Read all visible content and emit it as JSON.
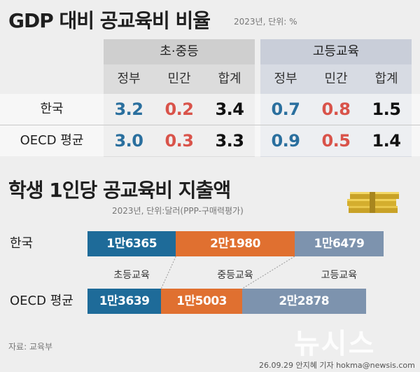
{
  "table_section": {
    "title": "GDP 대비 공교육비 비율",
    "note": "2023년, 단위: %",
    "groups": [
      "초·중등",
      "고등교육"
    ],
    "columns": [
      "정부",
      "민간",
      "합계",
      "정부",
      "민간",
      "합계"
    ],
    "rows": [
      {
        "label": "한국",
        "values": [
          "3.2",
          "0.2",
          "3.4",
          "0.7",
          "0.8",
          "1.5"
        ]
      },
      {
        "label": "OECD 평균",
        "values": [
          "3.0",
          "0.3",
          "3.3",
          "0.9",
          "0.5",
          "1.4"
        ]
      }
    ]
  },
  "bar_section": {
    "title": "학생 1인당 공교육비 지출액",
    "note": "2023년, 단위:달러(PPP-구매력평가)",
    "segment_names": [
      "초등교육",
      "중등교육",
      "고등교육"
    ],
    "rows": [
      {
        "label": "한국",
        "labels": [
          "1만6365",
          "2만1980",
          "1만6479"
        ]
      },
      {
        "label": "OECD 평균",
        "labels": [
          "1만3639",
          "1만5003",
          "2만2878"
        ]
      }
    ]
  },
  "footer": {
    "source": "자료: 교육부",
    "credit": "26.09.29 안지혜 기자 hokma@newsis.com",
    "watermark": "뉴시스"
  },
  "colors": {
    "gov": "#2a6f9e",
    "priv": "#d9534a",
    "elementary": "#1e6b99",
    "secondary": "#e07030",
    "higher": "#7d93ae"
  },
  "chart_data": [
    {
      "type": "table",
      "title": "GDP 대비 공교육비 비율",
      "subtitle": "2023년, 단위: %",
      "column_groups": [
        "초·중등",
        "고등교육"
      ],
      "columns": [
        "정부",
        "민간",
        "합계"
      ],
      "rows": [
        {
          "name": "한국",
          "values": [
            3.2,
            0.2,
            3.4,
            0.7,
            0.8,
            1.5
          ]
        },
        {
          "name": "OECD 평균",
          "values": [
            3.0,
            0.3,
            3.3,
            0.9,
            0.5,
            1.4
          ]
        }
      ]
    },
    {
      "type": "bar",
      "stacked": true,
      "orientation": "horizontal",
      "title": "학생 1인당 공교육비 지출액",
      "subtitle": "2023년, 단위:달러(PPP-구매력평가)",
      "categories": [
        "한국",
        "OECD 평균"
      ],
      "series": [
        {
          "name": "초등교육",
          "values": [
            16365,
            13639
          ]
        },
        {
          "name": "중등교육",
          "values": [
            21980,
            15003
          ]
        },
        {
          "name": "고등교육",
          "values": [
            16479,
            22878
          ]
        }
      ]
    }
  ]
}
